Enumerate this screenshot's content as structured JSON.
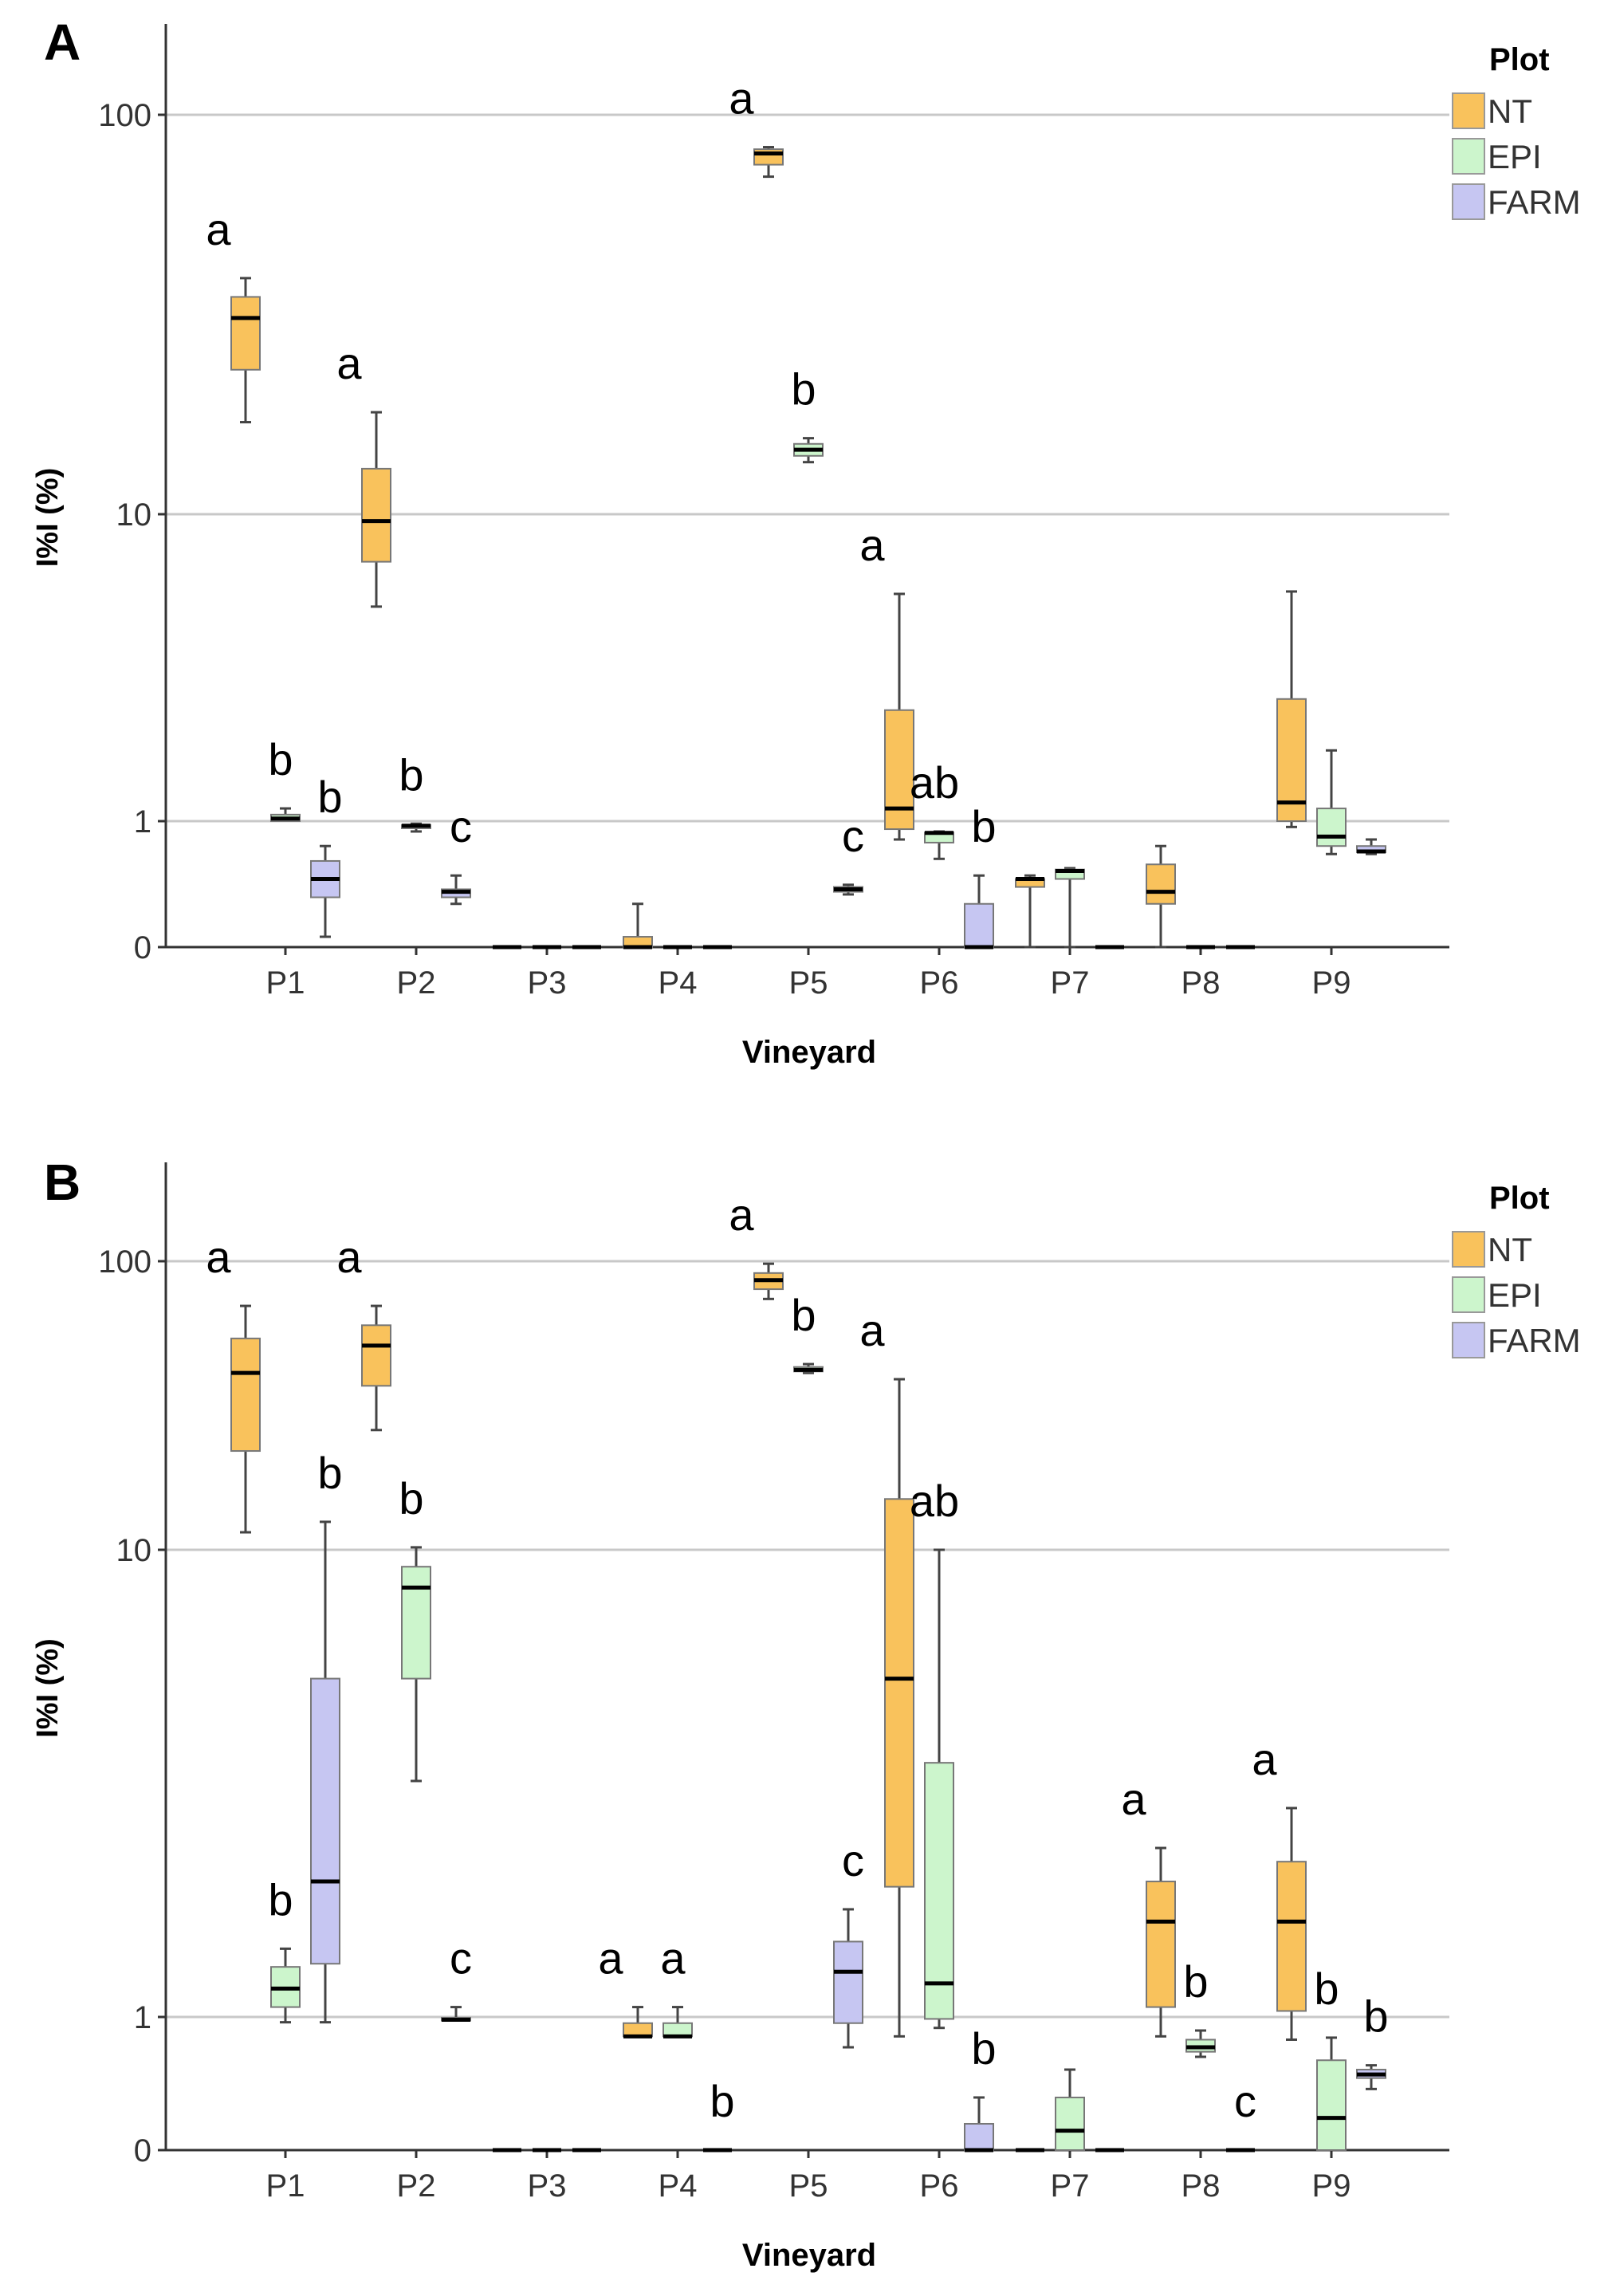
{
  "chart_data": [
    {
      "panel": "A",
      "type": "box",
      "title": "",
      "xlabel": "Vineyard",
      "ylabel": "I%I (%)",
      "yscale": "log (0 floor)",
      "yticks": [
        "0",
        "1",
        "10",
        "100"
      ],
      "categories": [
        "P1",
        "P2",
        "P3",
        "P4",
        "P5",
        "P6",
        "P7",
        "P8",
        "P9"
      ],
      "legend": {
        "title": "Plot",
        "entries": [
          "NT",
          "EPI",
          "FARM"
        ],
        "position": "top-right"
      },
      "colors": {
        "NT": "#F9C25C",
        "EPI": "#CCF5CC",
        "FARM": "#C6C6F2"
      },
      "series": [
        {
          "name": "NT",
          "boxes": [
            {
              "cat": "P1",
              "min": 17,
              "q1": 23,
              "median": 31,
              "q3": 35,
              "max": 39,
              "letter": "a"
            },
            {
              "cat": "P2",
              "min": 5,
              "q1": 7,
              "median": 9.5,
              "q3": 13,
              "max": 18,
              "letter": "a"
            },
            {
              "cat": "P3",
              "min": 0,
              "q1": 0,
              "median": 0,
              "q3": 0,
              "max": 0
            },
            {
              "cat": "P4",
              "min": 0,
              "q1": 0,
              "median": 0.02,
              "q3": 0.04,
              "max": 0.1
            },
            {
              "cat": "P5",
              "min": 70,
              "q1": 75,
              "median": 80,
              "q3": 82,
              "max": 83,
              "letter": "a"
            },
            {
              "cat": "P6",
              "min": 0.6,
              "q1": 0.8,
              "median": 1.1,
              "q3": 2.3,
              "max": 5.5,
              "letter": "a"
            },
            {
              "cat": "P7",
              "min": 0,
              "q1": 0.16,
              "median": 0.2,
              "q3": 0.2,
              "max": 0.22
            },
            {
              "cat": "P8",
              "min": 0,
              "q1": 0.1,
              "median": 0.14,
              "q3": 0.3,
              "max": 0.5
            },
            {
              "cat": "P9",
              "min": 0.85,
              "q1": 1.0,
              "median": 1.15,
              "q3": 2.5,
              "max": 5.6
            }
          ]
        },
        {
          "name": "EPI",
          "boxes": [
            {
              "cat": "P1",
              "min": 1.0,
              "q1": 1.0,
              "median": 1.02,
              "q3": 1.05,
              "max": 1.1,
              "letter": "b"
            },
            {
              "cat": "P2",
              "min": 0.75,
              "q1": 0.82,
              "median": 0.88,
              "q3": 0.9,
              "max": 0.93,
              "letter": "b"
            },
            {
              "cat": "P3",
              "min": 0,
              "q1": 0,
              "median": 0,
              "q3": 0,
              "max": 0
            },
            {
              "cat": "P4",
              "min": 0,
              "q1": 0,
              "median": 0,
              "q3": 0,
              "max": 0
            },
            {
              "cat": "P5",
              "min": 13.5,
              "q1": 14,
              "median": 14.5,
              "q3": 15,
              "max": 15.5,
              "letter": "b"
            },
            {
              "cat": "P6",
              "min": 0.35,
              "q1": 0.55,
              "median": 0.72,
              "q3": 0.73,
              "max": 0.75,
              "letter": "ab"
            },
            {
              "cat": "P7",
              "min": 0,
              "q1": 0.2,
              "median": 0.25,
              "q3": 0.26,
              "max": 0.27
            },
            {
              "cat": "P8",
              "min": 0,
              "q1": 0,
              "median": 0,
              "q3": 0,
              "max": 0
            },
            {
              "cat": "P9",
              "min": 0.4,
              "q1": 0.5,
              "median": 0.65,
              "q3": 1.1,
              "max": 1.7
            }
          ]
        },
        {
          "name": "FARM",
          "boxes": [
            {
              "cat": "P1",
              "min": 0.04,
              "q1": 0.12,
              "median": 0.2,
              "q3": 0.33,
              "max": 0.5,
              "letter": "b"
            },
            {
              "cat": "P2",
              "min": 0.1,
              "q1": 0.12,
              "median": 0.14,
              "q3": 0.15,
              "max": 0.22,
              "letter": "c"
            },
            {
              "cat": "P3",
              "min": 0,
              "q1": 0,
              "median": 0,
              "q3": 0,
              "max": 0
            },
            {
              "cat": "P4",
              "min": 0,
              "q1": 0,
              "median": 0,
              "q3": 0,
              "max": 0
            },
            {
              "cat": "P5",
              "min": 0.13,
              "q1": 0.14,
              "median": 0.15,
              "q3": 0.16,
              "max": 0.17,
              "letter": "c"
            },
            {
              "cat": "P6",
              "min": 0,
              "q1": 0,
              "median": 0.02,
              "q3": 0.1,
              "max": 0.22,
              "letter": "b"
            },
            {
              "cat": "P7",
              "min": 0,
              "q1": 0,
              "median": 0,
              "q3": 0,
              "max": 0
            },
            {
              "cat": "P8",
              "min": 0,
              "q1": 0,
              "median": 0,
              "q3": 0,
              "max": 0
            },
            {
              "cat": "P9",
              "min": 0.4,
              "q1": 0.42,
              "median": 0.43,
              "q3": 0.5,
              "max": 0.6
            }
          ]
        }
      ]
    },
    {
      "panel": "B",
      "type": "box",
      "title": "",
      "xlabel": "Vineyard",
      "ylabel": "I%I (%)",
      "yscale": "log (0 floor)",
      "yticks": [
        "0",
        "1",
        "10",
        "100"
      ],
      "categories": [
        "P1",
        "P2",
        "P3",
        "P4",
        "P5",
        "P6",
        "P7",
        "P8",
        "P9"
      ],
      "legend": {
        "title": "Plot",
        "entries": [
          "NT",
          "EPI",
          "FARM"
        ],
        "position": "top-right"
      },
      "colors": {
        "NT": "#F9C25C",
        "EPI": "#CCF5CC",
        "FARM": "#C6C6F2"
      },
      "series": [
        {
          "name": "NT",
          "boxes": [
            {
              "cat": "P1",
              "min": 11.5,
              "q1": 22,
              "median": 41,
              "q3": 54,
              "max": 70,
              "letter": "a"
            },
            {
              "cat": "P2",
              "min": 26,
              "q1": 37,
              "median": 51,
              "q3": 60,
              "max": 70,
              "letter": "a"
            },
            {
              "cat": "P3",
              "min": 0,
              "q1": 0,
              "median": 0,
              "q3": 0,
              "max": 0
            },
            {
              "cat": "P4",
              "min": 0.6,
              "q1": 0.6,
              "median": 0.6,
              "q3": 0.85,
              "max": 1.05,
              "letter": "a"
            },
            {
              "cat": "P5",
              "min": 74,
              "q1": 80,
              "median": 86,
              "q3": 91,
              "max": 98,
              "letter": "a"
            },
            {
              "cat": "P6",
              "min": 0.6,
              "q1": 1.9,
              "median": 5.3,
              "q3": 15,
              "max": 39,
              "letter": "a"
            },
            {
              "cat": "P7",
              "min": 0,
              "q1": 0,
              "median": 0,
              "q3": 0,
              "max": 0
            },
            {
              "cat": "P8",
              "min": 0.6,
              "q1": 1.05,
              "median": 1.6,
              "q3": 1.95,
              "max": 2.3,
              "letter": "a"
            },
            {
              "cat": "P9",
              "min": 0.55,
              "q1": 1.03,
              "median": 1.6,
              "q3": 2.15,
              "max": 2.8,
              "letter": "a"
            }
          ]
        },
        {
          "name": "EPI",
          "boxes": [
            {
              "cat": "P1",
              "min": 0.87,
              "q1": 1.05,
              "median": 1.15,
              "q3": 1.28,
              "max": 1.4,
              "letter": "b"
            },
            {
              "cat": "P2",
              "min": 3.2,
              "q1": 5.3,
              "median": 8.3,
              "q3": 9.2,
              "max": 10.2,
              "letter": "b"
            },
            {
              "cat": "P3",
              "min": 0,
              "q1": 0,
              "median": 0,
              "q3": 0,
              "max": 0
            },
            {
              "cat": "P4",
              "min": 0.6,
              "q1": 0.6,
              "median": 0.6,
              "q3": 0.85,
              "max": 1.05,
              "letter": "a"
            },
            {
              "cat": "P5",
              "min": 41,
              "q1": 41.5,
              "median": 42,
              "q3": 43,
              "max": 44,
              "letter": "b"
            },
            {
              "cat": "P6",
              "min": 0.75,
              "q1": 0.95,
              "median": 1.18,
              "q3": 3.5,
              "max": 10,
              "letter": "ab"
            },
            {
              "cat": "P7",
              "min": 0,
              "q1": 0,
              "median": 0.05,
              "q3": 0.12,
              "max": 0.25
            },
            {
              "cat": "P8",
              "min": 0.35,
              "q1": 0.4,
              "median": 0.45,
              "q3": 0.55,
              "max": 0.7,
              "letter": "b"
            },
            {
              "cat": "P9",
              "min": 0,
              "q1": 0.03,
              "median": 0.07,
              "q3": 0.32,
              "max": 0.58,
              "letter": "b"
            }
          ]
        },
        {
          "name": "FARM",
          "boxes": [
            {
              "cat": "P1",
              "min": 0.87,
              "q1": 1.3,
              "median": 1.95,
              "q3": 5.3,
              "max": 12.5,
              "letter": "b"
            },
            {
              "cat": "P2",
              "min": 0.9,
              "q1": 0.91,
              "median": 0.93,
              "q3": 0.98,
              "max": 1.05,
              "letter": "c"
            },
            {
              "cat": "P3",
              "min": 0,
              "q1": 0,
              "median": 0,
              "q3": 0,
              "max": 0
            },
            {
              "cat": "P4",
              "min": 0,
              "q1": 0,
              "median": 0,
              "q3": 0,
              "max": 0,
              "letter": "b"
            },
            {
              "cat": "P5",
              "min": 0.45,
              "q1": 0.85,
              "median": 1.25,
              "q3": 1.45,
              "max": 1.7,
              "letter": "c"
            },
            {
              "cat": "P6",
              "min": 0,
              "q1": 0,
              "median": 0.02,
              "q3": 0.06,
              "max": 0.12,
              "letter": "b"
            },
            {
              "cat": "P7",
              "min": 0,
              "q1": 0,
              "median": 0,
              "q3": 0,
              "max": 0
            },
            {
              "cat": "P8",
              "min": 0,
              "q1": 0,
              "median": 0,
              "q3": 0,
              "max": 0,
              "letter": "c"
            },
            {
              "cat": "P9",
              "min": 0.15,
              "q1": 0.2,
              "median": 0.22,
              "q3": 0.25,
              "max": 0.28,
              "letter": "b"
            }
          ]
        }
      ]
    }
  ]
}
